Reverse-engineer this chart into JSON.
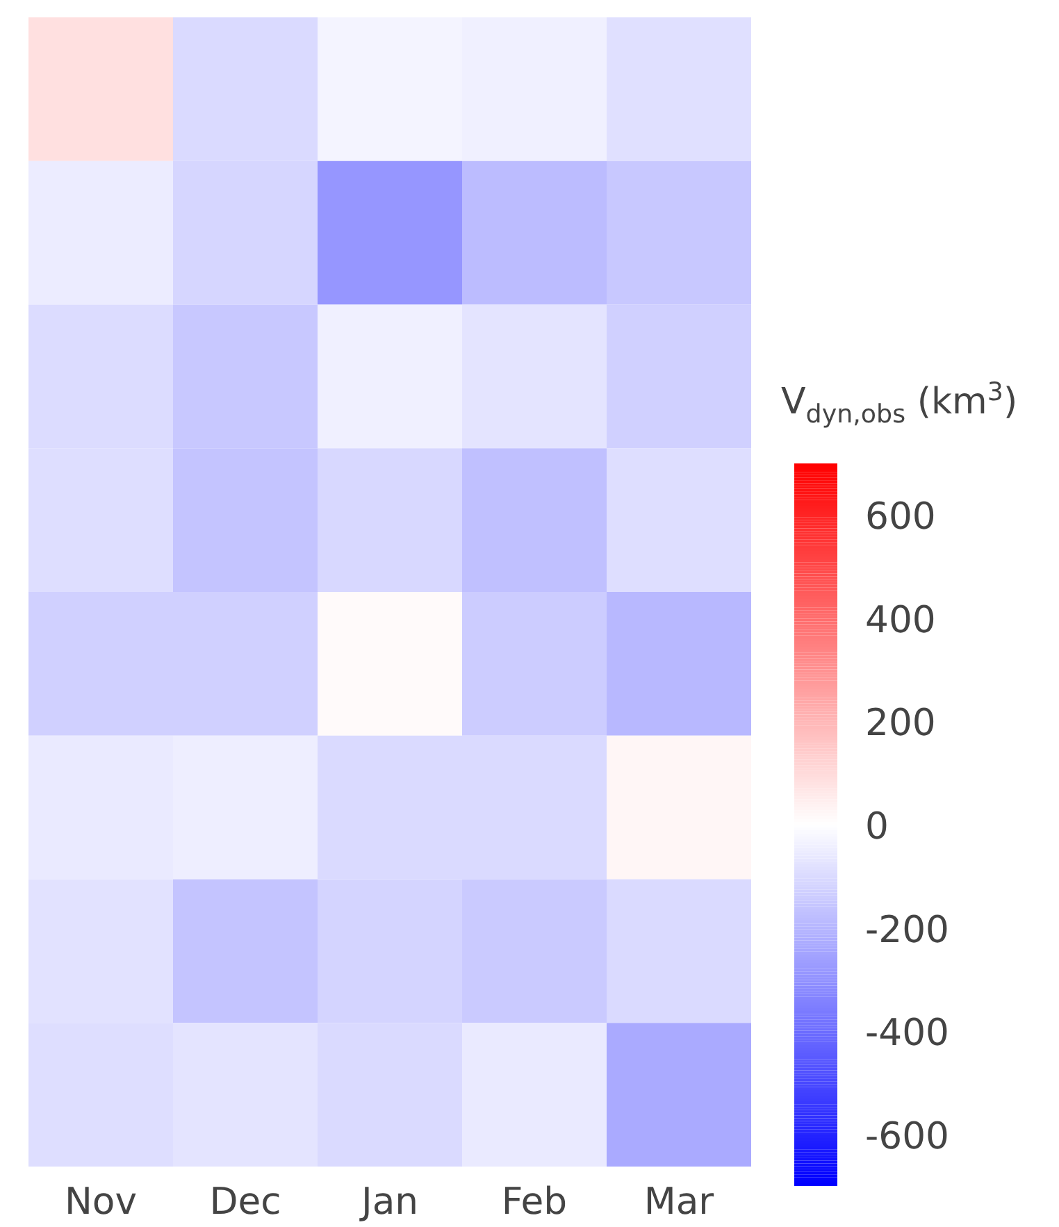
{
  "chart_data": {
    "type": "heatmap",
    "categories": [
      "Nov",
      "Dec",
      "Jan",
      "Feb",
      "Mar"
    ],
    "y_categories": [
      null,
      null,
      null,
      null,
      null,
      null,
      null,
      null
    ],
    "cells": [
      [
        85,
        -100,
        -30,
        -40,
        -85
      ],
      [
        -50,
        -110,
        -285,
        -185,
        -150
      ],
      [
        -95,
        -150,
        -40,
        -75,
        -130
      ],
      [
        -90,
        -160,
        -105,
        -170,
        -90
      ],
      [
        -130,
        -130,
        15,
        -140,
        -195
      ],
      [
        -55,
        -45,
        -100,
        -100,
        25
      ],
      [
        -80,
        -160,
        -120,
        -145,
        -100
      ],
      [
        -90,
        -75,
        -100,
        -60,
        -235
      ]
    ],
    "clim": [
      -700,
      700
    ],
    "cticks": [
      -600,
      -400,
      -200,
      0,
      200,
      400,
      600
    ],
    "clabel": "V$_{dyn,obs}$ (km$^{3}$)"
  }
}
